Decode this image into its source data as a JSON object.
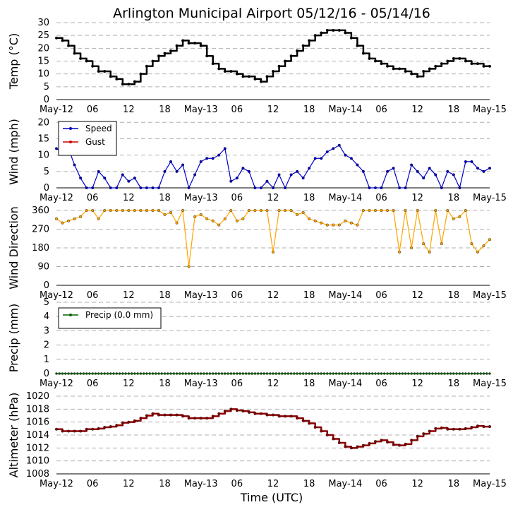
{
  "title": "Arlington Municipal Airport 05/12/16 - 05/14/16",
  "x_axis": {
    "label": "Time (UTC)",
    "range_hours": [
      0,
      72
    ],
    "ticks": [
      {
        "h": 0,
        "label": "May-12"
      },
      {
        "h": 6,
        "label": "06"
      },
      {
        "h": 12,
        "label": "12"
      },
      {
        "h": 18,
        "label": "18"
      },
      {
        "h": 24,
        "label": "May-13"
      },
      {
        "h": 30,
        "label": "06"
      },
      {
        "h": 36,
        "label": "12"
      },
      {
        "h": 42,
        "label": "18"
      },
      {
        "h": 48,
        "label": "May-14"
      },
      {
        "h": 54,
        "label": "06"
      },
      {
        "h": 60,
        "label": "12"
      },
      {
        "h": 66,
        "label": "18"
      },
      {
        "h": 72,
        "label": "May-15"
      }
    ]
  },
  "colors": {
    "temp": "#000000",
    "speed": "#0000cc",
    "gust": "#cc0000",
    "direction": "#ffa500",
    "precip": "#006400",
    "altimeter": "#8b0000",
    "grid": "#b0b0b0"
  },
  "chart_data": [
    {
      "type": "line",
      "id": "temp",
      "ylabel": "Temp (°C)",
      "ylim": [
        0,
        30
      ],
      "yticks": [
        "0",
        "5",
        "10",
        "15",
        "20",
        "25",
        "30"
      ],
      "series": [
        {
          "name": "Temp",
          "x": [
            0,
            1,
            2,
            3,
            4,
            5,
            6,
            7,
            8,
            9,
            10,
            11,
            12,
            13,
            14,
            15,
            16,
            17,
            18,
            19,
            20,
            21,
            22,
            23,
            24,
            25,
            26,
            27,
            28,
            29,
            30,
            31,
            32,
            33,
            34,
            35,
            36,
            37,
            38,
            39,
            40,
            41,
            42,
            43,
            44,
            45,
            46,
            47,
            48,
            49,
            50,
            51,
            52,
            53,
            54,
            55,
            56,
            57,
            58,
            59,
            60,
            61,
            62,
            63,
            64,
            65,
            66,
            67,
            68,
            69,
            70,
            71,
            72
          ],
          "values": [
            24,
            23,
            21,
            18,
            16,
            15,
            13,
            11,
            11,
            9,
            8,
            6,
            6,
            7,
            10,
            13,
            15,
            17,
            18,
            19,
            21,
            23,
            22,
            22,
            21,
            17,
            14,
            12,
            11,
            11,
            10,
            9,
            9,
            8,
            7,
            9,
            11,
            13,
            15,
            17,
            19,
            21,
            23,
            25,
            26,
            27,
            27,
            27,
            26,
            24,
            21,
            18,
            16,
            15,
            14,
            13,
            12,
            12,
            11,
            10,
            9,
            11,
            12,
            13,
            14,
            15,
            16,
            16,
            15,
            14,
            14,
            13,
            13
          ]
        }
      ]
    },
    {
      "type": "line",
      "id": "wind",
      "ylabel": "Wind (mph)",
      "ylim": [
        0,
        22
      ],
      "yticks": [
        "0",
        "5",
        "10",
        "15",
        "20"
      ],
      "legend": {
        "position": "top-left",
        "entries": [
          "Speed",
          "Gust"
        ]
      },
      "series": [
        {
          "name": "Speed",
          "x": [
            0,
            1,
            2,
            3,
            4,
            5,
            6,
            7,
            8,
            9,
            10,
            11,
            12,
            13,
            14,
            15,
            16,
            17,
            18,
            19,
            20,
            21,
            22,
            23,
            24,
            25,
            26,
            27,
            28,
            29,
            30,
            31,
            32,
            33,
            34,
            35,
            36,
            37,
            38,
            39,
            40,
            41,
            42,
            43,
            44,
            45,
            46,
            47,
            48,
            49,
            50,
            51,
            52,
            53,
            54,
            55,
            56,
            57,
            58,
            59,
            60,
            61,
            62,
            63,
            64,
            65,
            66,
            67,
            68,
            69,
            70,
            71,
            72
          ],
          "values": [
            12,
            11,
            12,
            7,
            3,
            0,
            0,
            5,
            3,
            0,
            0,
            4,
            2,
            3,
            0,
            0,
            0,
            0,
            5,
            8,
            5,
            7,
            0,
            4,
            8,
            9,
            9,
            10,
            12,
            2,
            3,
            6,
            5,
            0,
            0,
            2,
            0,
            4,
            0,
            4,
            5,
            3,
            6,
            9,
            9,
            11,
            12,
            13,
            10,
            9,
            7,
            5,
            0,
            0,
            0,
            5,
            6,
            0,
            0,
            7,
            5,
            3,
            6,
            4,
            0,
            5,
            4,
            0,
            8,
            8,
            6,
            5,
            6
          ]
        },
        {
          "name": "Gust",
          "x": [],
          "values": []
        }
      ]
    },
    {
      "type": "scatter",
      "id": "direction",
      "ylabel": "Wind Direction",
      "ylim": [
        0,
        360
      ],
      "yticks": [
        "0",
        "90",
        "180",
        "270",
        "360"
      ],
      "series": [
        {
          "name": "Direction",
          "x": [
            0,
            1,
            2,
            3,
            4,
            5,
            6,
            7,
            8,
            9,
            10,
            11,
            12,
            13,
            14,
            15,
            16,
            17,
            18,
            19,
            20,
            21,
            22,
            23,
            24,
            25,
            26,
            27,
            28,
            29,
            30,
            31,
            32,
            33,
            34,
            35,
            36,
            37,
            38,
            39,
            40,
            41,
            42,
            43,
            44,
            45,
            46,
            47,
            48,
            49,
            50,
            51,
            52,
            53,
            54,
            55,
            56,
            57,
            58,
            59,
            60,
            61,
            62,
            63,
            64,
            65,
            66,
            67,
            68,
            69,
            70,
            71,
            72
          ],
          "values": [
            320,
            300,
            310,
            320,
            330,
            360,
            360,
            320,
            360,
            360,
            360,
            360,
            360,
            360,
            360,
            360,
            360,
            360,
            340,
            350,
            300,
            360,
            90,
            330,
            340,
            320,
            310,
            290,
            320,
            360,
            310,
            320,
            360,
            360,
            360,
            360,
            160,
            360,
            360,
            360,
            340,
            350,
            320,
            310,
            300,
            290,
            290,
            290,
            310,
            300,
            290,
            360,
            360,
            360,
            360,
            360,
            360,
            160,
            360,
            180,
            360,
            200,
            160,
            360,
            200,
            360,
            320,
            330,
            360,
            200,
            160,
            190,
            220
          ]
        }
      ]
    },
    {
      "type": "line",
      "id": "precip",
      "ylabel": "Precip (mm)",
      "ylim": [
        0,
        5
      ],
      "yticks": [
        "0",
        "1",
        "2",
        "3",
        "4",
        "5"
      ],
      "legend": {
        "position": "top-left",
        "entries": [
          "Precip (0.0 mm)"
        ]
      },
      "series": [
        {
          "name": "Precip (0.0 mm)",
          "x": [
            0,
            72
          ],
          "values": [
            0,
            0
          ]
        }
      ]
    },
    {
      "type": "line",
      "id": "altimeter",
      "ylabel": "Altimeter (hPa)",
      "ylim": [
        1008,
        1020
      ],
      "yticks": [
        "1008",
        "1010",
        "1012",
        "1014",
        "1016",
        "1018",
        "1020"
      ],
      "series": [
        {
          "name": "Altimeter",
          "x": [
            0,
            1,
            2,
            3,
            4,
            5,
            6,
            7,
            8,
            9,
            10,
            11,
            12,
            13,
            14,
            15,
            16,
            17,
            18,
            19,
            20,
            21,
            22,
            23,
            24,
            25,
            26,
            27,
            28,
            29,
            30,
            31,
            32,
            33,
            34,
            35,
            36,
            37,
            38,
            39,
            40,
            41,
            42,
            43,
            44,
            45,
            46,
            47,
            48,
            49,
            50,
            51,
            52,
            53,
            54,
            55,
            56,
            57,
            58,
            59,
            60,
            61,
            62,
            63,
            64,
            65,
            66,
            67,
            68,
            69,
            70,
            71,
            72
          ],
          "values": [
            1014.9,
            1014.6,
            1014.6,
            1014.6,
            1014.6,
            1014.9,
            1014.9,
            1015.0,
            1015.2,
            1015.3,
            1015.5,
            1015.9,
            1016.0,
            1016.2,
            1016.6,
            1017.0,
            1017.3,
            1017.1,
            1017.1,
            1017.1,
            1017.1,
            1016.9,
            1016.6,
            1016.6,
            1016.6,
            1016.6,
            1016.9,
            1017.3,
            1017.7,
            1018.0,
            1017.8,
            1017.7,
            1017.5,
            1017.3,
            1017.3,
            1017.1,
            1017.1,
            1016.9,
            1016.9,
            1016.9,
            1016.6,
            1016.2,
            1015.8,
            1015.2,
            1014.6,
            1014.0,
            1013.4,
            1012.8,
            1012.2,
            1012.0,
            1012.2,
            1012.4,
            1012.7,
            1013.0,
            1013.2,
            1012.9,
            1012.5,
            1012.4,
            1012.6,
            1013.2,
            1013.8,
            1014.2,
            1014.6,
            1015.0,
            1015.1,
            1014.9,
            1014.9,
            1014.9,
            1015.0,
            1015.2,
            1015.4,
            1015.3,
            1015.3
          ]
        }
      ]
    }
  ]
}
